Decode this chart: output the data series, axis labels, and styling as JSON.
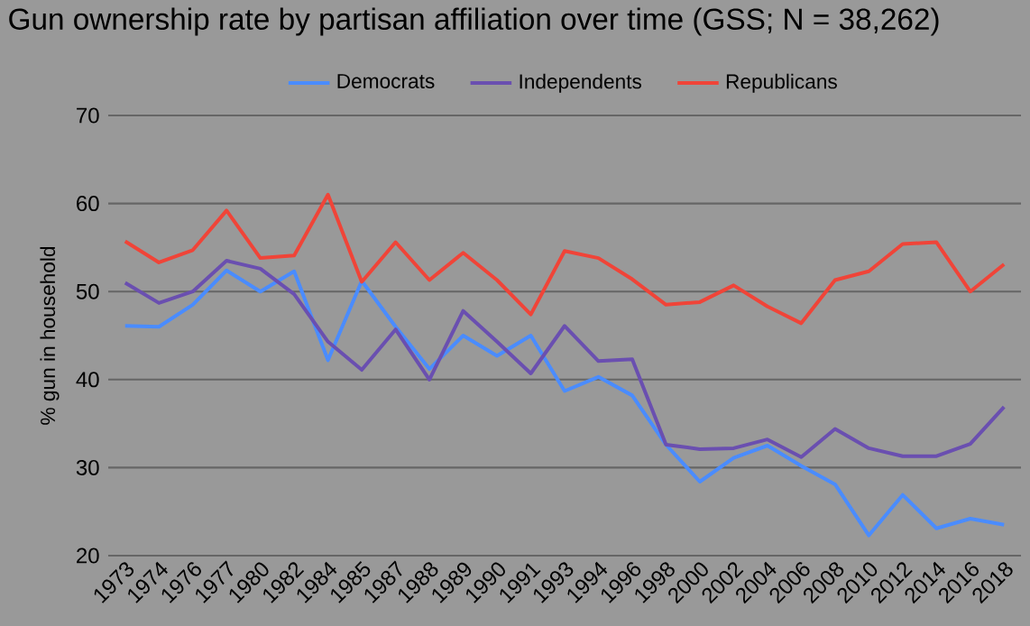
{
  "chart_data": {
    "type": "line",
    "title": "Gun ownership rate by partisan affiliation over time (GSS; N = 38,262)",
    "ylabel": "% gun in household",
    "categories": [
      "1973",
      "1974",
      "1976",
      "1977",
      "1980",
      "1982",
      "1984",
      "1985",
      "1987",
      "1988",
      "1989",
      "1990",
      "1991",
      "1993",
      "1994",
      "1996",
      "1998",
      "2000",
      "2002",
      "2004",
      "2006",
      "2008",
      "2010",
      "2012",
      "2014",
      "2016",
      "2018"
    ],
    "series": [
      {
        "name": "Democrats",
        "color": "#4a8cff",
        "values": [
          46.1,
          46,
          48.5,
          52.4,
          50,
          52.3,
          42.2,
          51.2,
          46,
          41.2,
          45,
          42.7,
          45,
          38.7,
          40.3,
          38.2,
          32.6,
          28.4,
          31.1,
          32.5,
          30.2,
          28.1,
          22.3,
          26.9,
          23.1,
          24.2,
          23.5
        ]
      },
      {
        "name": "Independents",
        "color": "#6a4fb0",
        "values": [
          51,
          48.7,
          50,
          53.5,
          52.6,
          49.7,
          44.3,
          41.1,
          45.7,
          40,
          47.8,
          44.3,
          40.7,
          46.1,
          42.1,
          42.3,
          32.6,
          32.1,
          32.2,
          33.2,
          31.2,
          34.4,
          32.2,
          31.3,
          31.3,
          32.7,
          36.9
        ]
      },
      {
        "name": "Republicans",
        "color": "#f04438",
        "values": [
          55.7,
          53.3,
          54.7,
          59.2,
          53.8,
          54.1,
          61,
          51.1,
          55.6,
          51.3,
          54.4,
          51.3,
          47.4,
          54.6,
          53.8,
          51.4,
          48.5,
          48.8,
          50.7,
          48.3,
          46.4,
          51.3,
          52.3,
          55.4,
          55.6,
          50,
          53.1
        ]
      }
    ],
    "ylim": [
      20,
      70
    ],
    "yticks": [
      20,
      30,
      40,
      50,
      60,
      70
    ],
    "grid": "y",
    "legend": "top",
    "marker": "none",
    "line_style": "solid"
  }
}
